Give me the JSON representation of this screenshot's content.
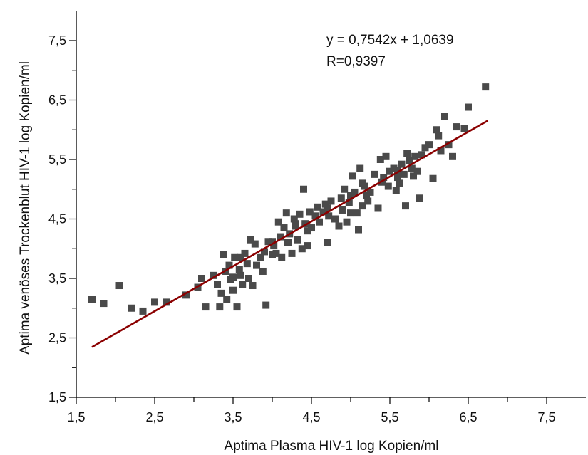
{
  "chart_data": {
    "type": "scatter",
    "xlabel": "Aptima Plasma HIV-1 log Kopien/ml",
    "ylabel": "Aptima venöses Trockenblut HIV-1 log Kopien/ml",
    "xlim": [
      1.5,
      8.0
    ],
    "ylim": [
      1.5,
      8.0
    ],
    "xticks": [
      "1,5",
      "2,5",
      "3,5",
      "4,5",
      "5,5",
      "6,5",
      "7,5"
    ],
    "xtick_values": [
      1.5,
      2.5,
      3.5,
      4.5,
      5.5,
      6.5,
      7.5
    ],
    "yticks": [
      "1,5",
      "2,5",
      "3,5",
      "4,5",
      "5,5",
      "6,5",
      "7,5"
    ],
    "ytick_values": [
      1.5,
      2.5,
      3.5,
      4.5,
      5.5,
      6.5,
      7.5
    ],
    "grid": false,
    "annotations": {
      "equation": "y = 0,7542x + 1,0639",
      "r_value": "R=0,9397"
    },
    "trendline": {
      "slope": 0.7542,
      "intercept": 1.0639,
      "x_range": [
        1.7,
        6.75
      ],
      "color": "#8b0000"
    },
    "point_color": "#4a4a4a",
    "points": [
      [
        1.7,
        3.15
      ],
      [
        1.85,
        3.08
      ],
      [
        2.05,
        3.38
      ],
      [
        2.2,
        3.0
      ],
      [
        2.35,
        2.95
      ],
      [
        2.5,
        3.1
      ],
      [
        2.65,
        3.1
      ],
      [
        2.9,
        3.22
      ],
      [
        3.05,
        3.35
      ],
      [
        3.1,
        3.5
      ],
      [
        3.15,
        3.02
      ],
      [
        3.25,
        3.55
      ],
      [
        3.3,
        3.4
      ],
      [
        3.35,
        3.25
      ],
      [
        3.38,
        3.9
      ],
      [
        3.4,
        3.62
      ],
      [
        3.42,
        3.15
      ],
      [
        3.45,
        3.72
      ],
      [
        3.47,
        3.48
      ],
      [
        3.5,
        3.3
      ],
      [
        3.52,
        3.85
      ],
      [
        3.55,
        3.02
      ],
      [
        3.58,
        3.65
      ],
      [
        3.6,
        3.55
      ],
      [
        3.62,
        3.4
      ],
      [
        3.65,
        3.92
      ],
      [
        3.68,
        3.75
      ],
      [
        3.7,
        3.5
      ],
      [
        3.72,
        4.15
      ],
      [
        3.75,
        3.38
      ],
      [
        3.78,
        4.08
      ],
      [
        3.8,
        3.72
      ],
      [
        3.85,
        3.85
      ],
      [
        3.88,
        3.62
      ],
      [
        3.9,
        3.95
      ],
      [
        3.92,
        3.05
      ],
      [
        3.95,
        4.12
      ],
      [
        4.0,
        3.9
      ],
      [
        4.02,
        4.05
      ],
      [
        4.05,
        3.92
      ],
      [
        4.08,
        4.45
      ],
      [
        4.1,
        4.2
      ],
      [
        4.12,
        3.85
      ],
      [
        4.15,
        4.35
      ],
      [
        4.18,
        4.6
      ],
      [
        4.2,
        4.1
      ],
      [
        4.22,
        4.25
      ],
      [
        4.25,
        3.92
      ],
      [
        4.28,
        4.5
      ],
      [
        4.3,
        4.38
      ],
      [
        4.32,
        4.15
      ],
      [
        4.35,
        4.58
      ],
      [
        4.38,
        4.0
      ],
      [
        4.4,
        5.0
      ],
      [
        4.42,
        4.42
      ],
      [
        4.45,
        4.3
      ],
      [
        4.48,
        4.62
      ],
      [
        4.5,
        4.35
      ],
      [
        4.55,
        4.55
      ],
      [
        4.58,
        4.7
      ],
      [
        4.6,
        4.45
      ],
      [
        4.65,
        4.62
      ],
      [
        4.68,
        4.75
      ],
      [
        4.7,
        4.1
      ],
      [
        4.72,
        4.55
      ],
      [
        4.75,
        4.8
      ],
      [
        4.8,
        4.5
      ],
      [
        4.85,
        4.38
      ],
      [
        4.88,
        4.85
      ],
      [
        4.9,
        4.65
      ],
      [
        4.92,
        5.0
      ],
      [
        4.95,
        4.45
      ],
      [
        4.98,
        4.78
      ],
      [
        5.0,
        4.9
      ],
      [
        5.02,
        5.22
      ],
      [
        5.05,
        4.95
      ],
      [
        5.08,
        4.6
      ],
      [
        5.1,
        4.32
      ],
      [
        5.12,
        5.35
      ],
      [
        5.15,
        4.72
      ],
      [
        5.18,
        5.05
      ],
      [
        5.2,
        4.9
      ],
      [
        5.22,
        4.8
      ],
      [
        5.3,
        5.25
      ],
      [
        5.35,
        4.68
      ],
      [
        5.38,
        5.5
      ],
      [
        5.4,
        5.12
      ],
      [
        5.42,
        5.2
      ],
      [
        5.45,
        5.55
      ],
      [
        5.48,
        5.05
      ],
      [
        5.5,
        5.3
      ],
      [
        5.55,
        5.35
      ],
      [
        5.58,
        4.98
      ],
      [
        5.6,
        5.2
      ],
      [
        5.62,
        5.1
      ],
      [
        5.65,
        5.42
      ],
      [
        5.68,
        5.25
      ],
      [
        5.7,
        4.72
      ],
      [
        5.72,
        5.6
      ],
      [
        5.75,
        5.48
      ],
      [
        5.78,
        5.35
      ],
      [
        5.8,
        5.22
      ],
      [
        5.82,
        5.55
      ],
      [
        5.85,
        5.3
      ],
      [
        5.88,
        4.85
      ],
      [
        5.9,
        5.58
      ],
      [
        5.95,
        5.7
      ],
      [
        6.0,
        5.75
      ],
      [
        6.05,
        5.18
      ],
      [
        6.1,
        6.0
      ],
      [
        6.12,
        5.9
      ],
      [
        6.15,
        5.65
      ],
      [
        6.2,
        6.22
      ],
      [
        6.25,
        5.75
      ],
      [
        6.3,
        5.55
      ],
      [
        6.35,
        6.05
      ],
      [
        6.45,
        6.02
      ],
      [
        6.5,
        6.38
      ],
      [
        6.72,
        6.72
      ],
      [
        3.33,
        3.02
      ],
      [
        3.6,
        3.85
      ],
      [
        4.0,
        4.12
      ],
      [
        4.45,
        4.05
      ],
      [
        5.0,
        4.6
      ],
      [
        5.25,
        4.95
      ],
      [
        5.6,
        5.32
      ],
      [
        3.5,
        3.52
      ],
      [
        4.3,
        4.42
      ],
      [
        4.7,
        4.68
      ],
      [
        5.15,
        5.1
      ]
    ]
  }
}
